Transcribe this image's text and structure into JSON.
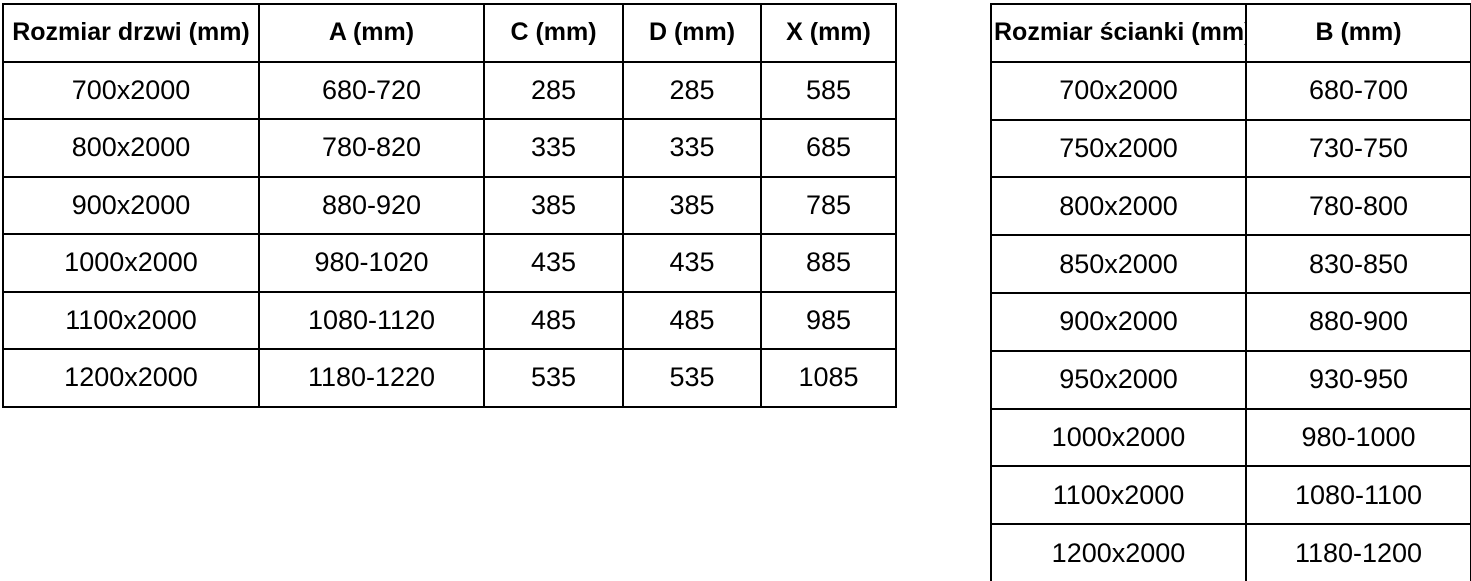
{
  "colors": {
    "background": "#ffffff",
    "border": "#000000",
    "text": "#000000"
  },
  "chart_data": [
    {
      "type": "table",
      "name": "door-size-table",
      "headers": [
        "Rozmiar drzwi (mm)",
        "A (mm)",
        "C (mm)",
        "D (mm)",
        "X (mm)"
      ],
      "rows": [
        [
          "700x2000",
          "680-720",
          "285",
          "285",
          "585"
        ],
        [
          "800x2000",
          "780-820",
          "335",
          "335",
          "685"
        ],
        [
          "900x2000",
          "880-920",
          "385",
          "385",
          "785"
        ],
        [
          "1000x2000",
          "980-1020",
          "435",
          "435",
          "885"
        ],
        [
          "1100x2000",
          "1080-1120",
          "485",
          "485",
          "985"
        ],
        [
          "1200x2000",
          "1180-1220",
          "535",
          "535",
          "1085"
        ]
      ]
    },
    {
      "type": "table",
      "name": "wall-panel-size-table",
      "headers": [
        "Rozmiar ścianki (mm)",
        "B (mm)"
      ],
      "rows": [
        [
          "700x2000",
          "680-700"
        ],
        [
          "750x2000",
          "730-750"
        ],
        [
          "800x2000",
          "780-800"
        ],
        [
          "850x2000",
          "830-850"
        ],
        [
          "900x2000",
          "880-900"
        ],
        [
          "950x2000",
          "930-950"
        ],
        [
          "1000x2000",
          "980-1000"
        ],
        [
          "1100x2000",
          "1080-1100"
        ],
        [
          "1200x2000",
          "1180-1200"
        ]
      ]
    }
  ]
}
